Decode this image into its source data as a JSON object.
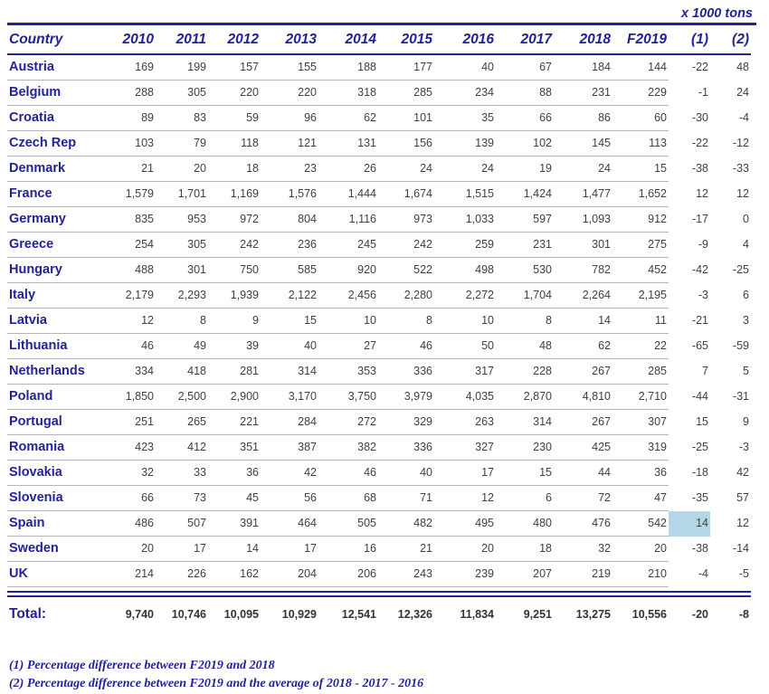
{
  "unit_label": "x 1000 tons",
  "table": {
    "columns": [
      "Country",
      "2010",
      "2011",
      "2012",
      "2013",
      "2014",
      "2015",
      "2016",
      "2017",
      "2018",
      "F2019",
      "(1)",
      "(2)"
    ],
    "rows": [
      {
        "country": "Austria",
        "values": [
          "169",
          "199",
          "157",
          "155",
          "188",
          "177",
          "40",
          "67",
          "184",
          "144",
          "-22",
          "48"
        ]
      },
      {
        "country": "Belgium",
        "values": [
          "288",
          "305",
          "220",
          "220",
          "318",
          "285",
          "234",
          "88",
          "231",
          "229",
          "-1",
          "24"
        ]
      },
      {
        "country": "Croatia",
        "values": [
          "89",
          "83",
          "59",
          "96",
          "62",
          "101",
          "35",
          "66",
          "86",
          "60",
          "-30",
          "-4"
        ]
      },
      {
        "country": "Czech Rep",
        "values": [
          "103",
          "79",
          "118",
          "121",
          "131",
          "156",
          "139",
          "102",
          "145",
          "113",
          "-22",
          "-12"
        ]
      },
      {
        "country": "Denmark",
        "values": [
          "21",
          "20",
          "18",
          "23",
          "26",
          "24",
          "24",
          "19",
          "24",
          "15",
          "-38",
          "-33"
        ]
      },
      {
        "country": "France",
        "values": [
          "1,579",
          "1,701",
          "1,169",
          "1,576",
          "1,444",
          "1,674",
          "1,515",
          "1,424",
          "1,477",
          "1,652",
          "12",
          "12"
        ]
      },
      {
        "country": "Germany",
        "values": [
          "835",
          "953",
          "972",
          "804",
          "1,116",
          "973",
          "1,033",
          "597",
          "1,093",
          "912",
          "-17",
          "0"
        ]
      },
      {
        "country": "Greece",
        "values": [
          "254",
          "305",
          "242",
          "236",
          "245",
          "242",
          "259",
          "231",
          "301",
          "275",
          "-9",
          "4"
        ]
      },
      {
        "country": "Hungary",
        "values": [
          "488",
          "301",
          "750",
          "585",
          "920",
          "522",
          "498",
          "530",
          "782",
          "452",
          "-42",
          "-25"
        ]
      },
      {
        "country": "Italy",
        "values": [
          "2,179",
          "2,293",
          "1,939",
          "2,122",
          "2,456",
          "2,280",
          "2,272",
          "1,704",
          "2,264",
          "2,195",
          "-3",
          "6"
        ]
      },
      {
        "country": "Latvia",
        "values": [
          "12",
          "8",
          "9",
          "15",
          "10",
          "8",
          "10",
          "8",
          "14",
          "11",
          "-21",
          "3"
        ]
      },
      {
        "country": "Lithuania",
        "values": [
          "46",
          "49",
          "39",
          "40",
          "27",
          "46",
          "50",
          "48",
          "62",
          "22",
          "-65",
          "-59"
        ]
      },
      {
        "country": "Netherlands",
        "values": [
          "334",
          "418",
          "281",
          "314",
          "353",
          "336",
          "317",
          "228",
          "267",
          "285",
          "7",
          "5"
        ]
      },
      {
        "country": "Poland",
        "values": [
          "1,850",
          "2,500",
          "2,900",
          "3,170",
          "3,750",
          "3,979",
          "4,035",
          "2,870",
          "4,810",
          "2,710",
          "-44",
          "-31"
        ]
      },
      {
        "country": "Portugal",
        "values": [
          "251",
          "265",
          "221",
          "284",
          "272",
          "329",
          "263",
          "314",
          "267",
          "307",
          "15",
          "9"
        ]
      },
      {
        "country": "Romania",
        "values": [
          "423",
          "412",
          "351",
          "387",
          "382",
          "336",
          "327",
          "230",
          "425",
          "319",
          "-25",
          "-3"
        ]
      },
      {
        "country": "Slovakia",
        "values": [
          "32",
          "33",
          "36",
          "42",
          "46",
          "40",
          "17",
          "15",
          "44",
          "36",
          "-18",
          "42"
        ]
      },
      {
        "country": "Slovenia",
        "values": [
          "66",
          "73",
          "45",
          "56",
          "68",
          "71",
          "12",
          "6",
          "72",
          "47",
          "-35",
          "57"
        ]
      },
      {
        "country": "Spain",
        "values": [
          "486",
          "507",
          "391",
          "464",
          "505",
          "482",
          "495",
          "480",
          "476",
          "542",
          "14",
          "12"
        ]
      },
      {
        "country": "Sweden",
        "values": [
          "20",
          "17",
          "14",
          "17",
          "16",
          "21",
          "20",
          "18",
          "32",
          "20",
          "-38",
          "-14"
        ]
      },
      {
        "country": "UK",
        "values": [
          "214",
          "226",
          "162",
          "204",
          "206",
          "243",
          "239",
          "207",
          "219",
          "210",
          "-4",
          "-5"
        ]
      }
    ],
    "total": {
      "label": "Total:",
      "values": [
        "9,740",
        "10,746",
        "10,095",
        "10,929",
        "12,541",
        "12,326",
        "11,834",
        "9,251",
        "13,275",
        "10,556",
        "-20",
        "-8"
      ]
    },
    "highlighted_cell": {
      "country": "Spain",
      "column": "(1)",
      "value": "14"
    }
  },
  "footnotes": [
    "(1) Percentage difference between F2019 and 2018",
    "(2) Percentage difference between F2019 and the average of 2018 - 2017 - 2016"
  ],
  "colors": {
    "navy": "#22229B",
    "value_text": "#3f3f3f",
    "row_line": "#b5b5b5",
    "highlight": "#b4d7e8"
  },
  "chart_data": {
    "type": "table",
    "title": "x 1000 tons",
    "categories": [
      "2010",
      "2011",
      "2012",
      "2013",
      "2014",
      "2015",
      "2016",
      "2017",
      "2018",
      "F2019",
      "(1)",
      "(2)"
    ],
    "series": [
      {
        "name": "Austria",
        "values": [
          169,
          199,
          157,
          155,
          188,
          177,
          40,
          67,
          184,
          144,
          -22,
          48
        ]
      },
      {
        "name": "Belgium",
        "values": [
          288,
          305,
          220,
          220,
          318,
          285,
          234,
          88,
          231,
          229,
          -1,
          24
        ]
      },
      {
        "name": "Croatia",
        "values": [
          89,
          83,
          59,
          96,
          62,
          101,
          35,
          66,
          86,
          60,
          -30,
          -4
        ]
      },
      {
        "name": "Czech Rep",
        "values": [
          103,
          79,
          118,
          121,
          131,
          156,
          139,
          102,
          145,
          113,
          -22,
          -12
        ]
      },
      {
        "name": "Denmark",
        "values": [
          21,
          20,
          18,
          23,
          26,
          24,
          24,
          19,
          24,
          15,
          -38,
          -33
        ]
      },
      {
        "name": "France",
        "values": [
          1579,
          1701,
          1169,
          1576,
          1444,
          1674,
          1515,
          1424,
          1477,
          1652,
          12,
          12
        ]
      },
      {
        "name": "Germany",
        "values": [
          835,
          953,
          972,
          804,
          1116,
          973,
          1033,
          597,
          1093,
          912,
          -17,
          0
        ]
      },
      {
        "name": "Greece",
        "values": [
          254,
          305,
          242,
          236,
          245,
          242,
          259,
          231,
          301,
          275,
          -9,
          4
        ]
      },
      {
        "name": "Hungary",
        "values": [
          488,
          301,
          750,
          585,
          920,
          522,
          498,
          530,
          782,
          452,
          -42,
          -25
        ]
      },
      {
        "name": "Italy",
        "values": [
          2179,
          2293,
          1939,
          2122,
          2456,
          2280,
          2272,
          1704,
          2264,
          2195,
          -3,
          6
        ]
      },
      {
        "name": "Latvia",
        "values": [
          12,
          8,
          9,
          15,
          10,
          8,
          10,
          8,
          14,
          11,
          -21,
          3
        ]
      },
      {
        "name": "Lithuania",
        "values": [
          46,
          49,
          39,
          40,
          27,
          46,
          50,
          48,
          62,
          22,
          -65,
          -59
        ]
      },
      {
        "name": "Netherlands",
        "values": [
          334,
          418,
          281,
          314,
          353,
          336,
          317,
          228,
          267,
          285,
          7,
          5
        ]
      },
      {
        "name": "Poland",
        "values": [
          1850,
          2500,
          2900,
          3170,
          3750,
          3979,
          4035,
          2870,
          4810,
          2710,
          -44,
          -31
        ]
      },
      {
        "name": "Portugal",
        "values": [
          251,
          265,
          221,
          284,
          272,
          329,
          263,
          314,
          267,
          307,
          15,
          9
        ]
      },
      {
        "name": "Romania",
        "values": [
          423,
          412,
          351,
          387,
          382,
          336,
          327,
          230,
          425,
          319,
          -25,
          -3
        ]
      },
      {
        "name": "Slovakia",
        "values": [
          32,
          33,
          36,
          42,
          46,
          40,
          17,
          15,
          44,
          36,
          -18,
          42
        ]
      },
      {
        "name": "Slovenia",
        "values": [
          66,
          73,
          45,
          56,
          68,
          71,
          12,
          6,
          72,
          47,
          -35,
          57
        ]
      },
      {
        "name": "Spain",
        "values": [
          486,
          507,
          391,
          464,
          505,
          482,
          495,
          480,
          476,
          542,
          14,
          12
        ]
      },
      {
        "name": "Sweden",
        "values": [
          20,
          17,
          14,
          17,
          16,
          21,
          20,
          18,
          32,
          20,
          -38,
          -14
        ]
      },
      {
        "name": "UK",
        "values": [
          214,
          226,
          162,
          204,
          206,
          243,
          239,
          207,
          219,
          210,
          -4,
          -5
        ]
      },
      {
        "name": "Total:",
        "values": [
          9740,
          10746,
          10095,
          10929,
          12541,
          12326,
          11834,
          9251,
          13275,
          10556,
          -20,
          -8
        ]
      }
    ]
  }
}
